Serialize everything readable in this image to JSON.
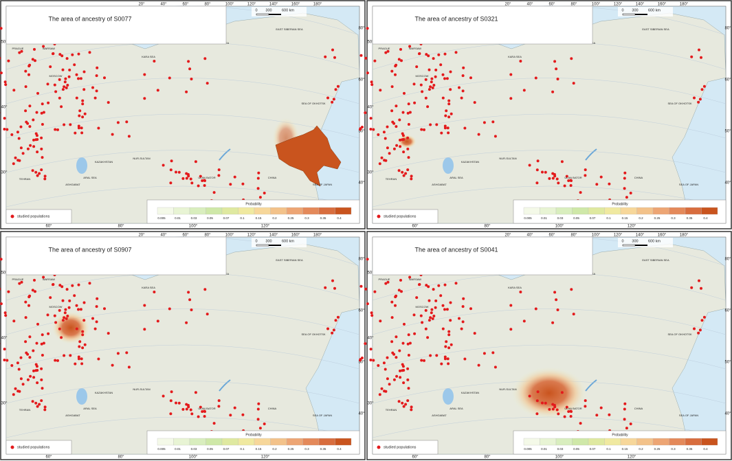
{
  "panels": [
    {
      "title": "The area of ancestry of S0077"
    },
    {
      "title": "The area of ancestry of S0321"
    },
    {
      "title": "The area of ancestry of S0907"
    },
    {
      "title": "The area of ancestry of S0041"
    }
  ],
  "scale": {
    "labels": [
      "0",
      "300",
      "600 km"
    ]
  },
  "probability": {
    "title": "Probability",
    "labels": [
      "0.005",
      "0.01",
      "0.03",
      "0.05",
      "0.07",
      "0.1",
      "0.15",
      "0.2",
      "0.25",
      "0.3",
      "0.35",
      "0.4"
    ]
  },
  "legend": "studied populations",
  "top_degrees": [
    "20°",
    "40°",
    "60°",
    "80°",
    "100°",
    "120°",
    "140°",
    "160°",
    "180°"
  ],
  "bottom_degrees": [
    "60°",
    "80°",
    "100°",
    "120°"
  ],
  "left_degrees": [
    "50°",
    "40°",
    "30°"
  ],
  "right_degrees": [
    "80°",
    "60°",
    "50°",
    "40°"
  ],
  "places": [
    "BARENTS SEA",
    "KARA SEA",
    "LAPTEV SEA",
    "EAST SIBERIAN SEA",
    "SEA OF OKHOTSK",
    "SEA OF JAPAN",
    "BALTIC SEA",
    "ARAL SEA",
    "KAZAKHSTAN",
    "CHINA",
    "ULAN BATOR",
    "NUR-SULTAN",
    "TEHRAN",
    "ASHGABAT",
    "BERLIN",
    "PRAGUE",
    "WARSAW",
    "MOSCOW"
  ]
}
